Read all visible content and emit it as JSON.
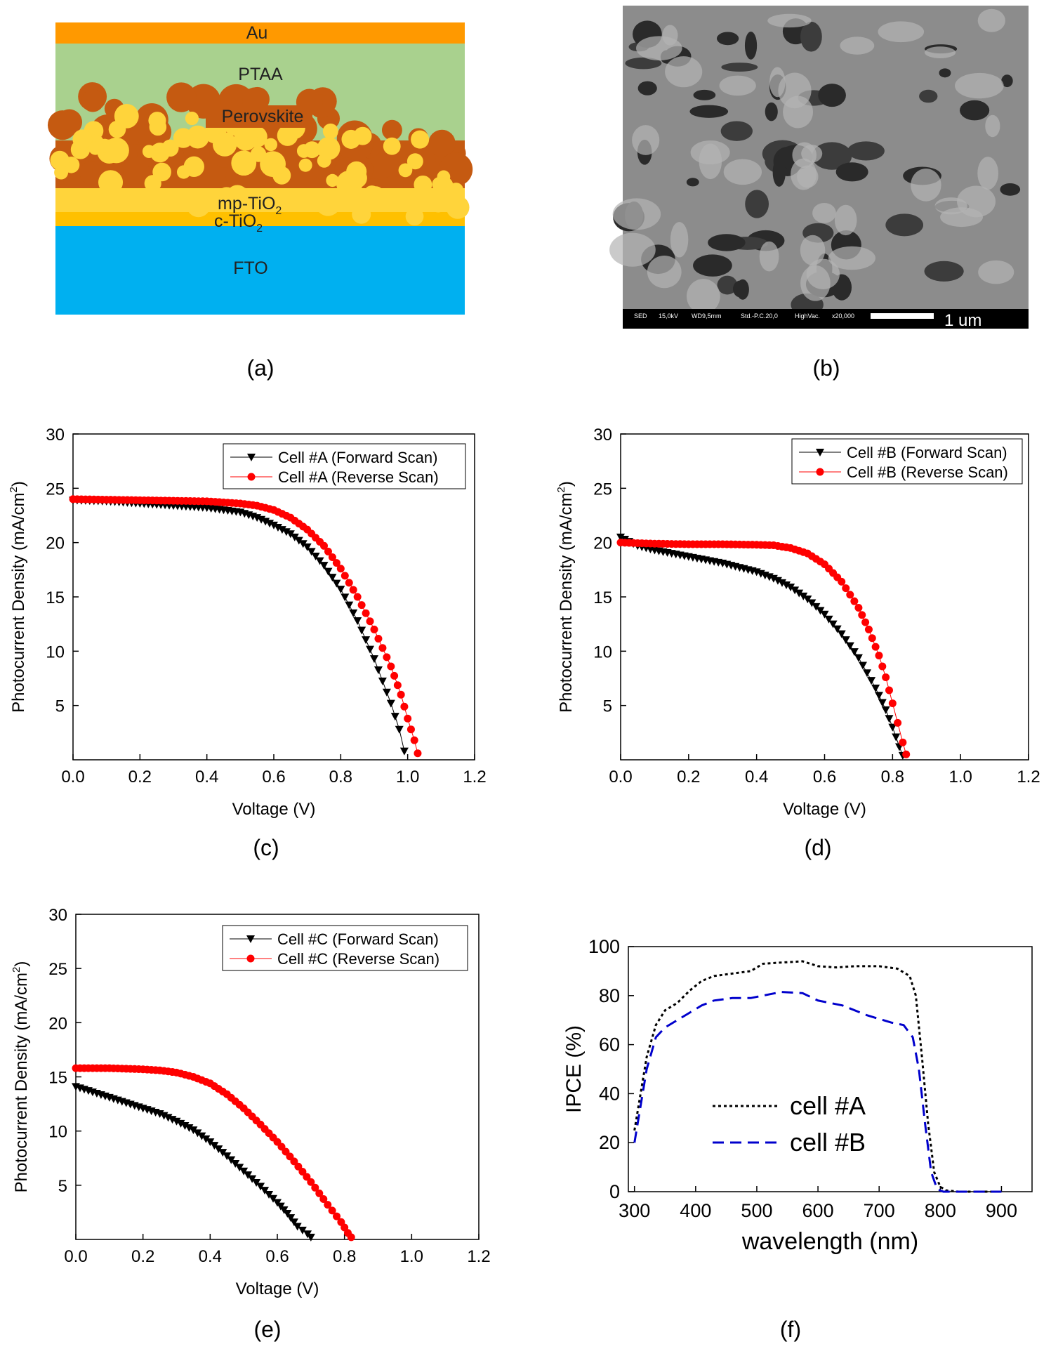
{
  "panel_labels": {
    "a": "(a)",
    "b": "(b)",
    "c": "(c)",
    "d": "(d)",
    "e": "(e)",
    "f": "(f)"
  },
  "schematic": {
    "layers": {
      "au": "Au",
      "ptaa": "PTAA",
      "perovskite": "Perovskite",
      "mp_tio2_base": "mp-TiO",
      "mp_tio2_sub": "2",
      "c_tio2_base": "c-TiO",
      "c_tio2_sub": "2",
      "fto": "FTO"
    },
    "colors": {
      "au": "#ff9900",
      "ptaa": "#a9d18e",
      "perovskite": "#c55a11",
      "mp_tio2": "#ffd43b",
      "c_tio2": "#ffc000",
      "fto": "#00b0f0"
    }
  },
  "sem": {
    "info_sed": "SED",
    "info_kv": "15,0kV",
    "info_wd": "WD9,5mm",
    "info_std": "Std.-P.C.20,0",
    "info_vac": "HighVac.",
    "info_mag": "x20,000",
    "scale_label": "1 um"
  },
  "chart_data": [
    {
      "id": "c",
      "type": "scatter",
      "xlabel": "Voltage (V)",
      "ylabel_base": "Photocurrent Density (mA/cm",
      "ylabel_sup": "2",
      "ylabel_end": ")",
      "xlim": [
        0,
        1.2
      ],
      "ylim": [
        0,
        30
      ],
      "xticks": [
        "0.0",
        "0.2",
        "0.4",
        "0.6",
        "0.8",
        "1.0",
        "1.2"
      ],
      "yticks": [
        "5",
        "10",
        "15",
        "20",
        "25",
        "30"
      ],
      "legend_position": "top-right",
      "series": [
        {
          "name": "Cell #A (Forward Scan)",
          "marker": "triangle-down",
          "color": "#000000",
          "points": [
            [
              0.0,
              23.9
            ],
            [
              0.1,
              23.8
            ],
            [
              0.2,
              23.6
            ],
            [
              0.3,
              23.4
            ],
            [
              0.4,
              23.2
            ],
            [
              0.5,
              22.8
            ],
            [
              0.55,
              22.3
            ],
            [
              0.6,
              21.6
            ],
            [
              0.65,
              20.8
            ],
            [
              0.7,
              19.6
            ],
            [
              0.75,
              17.9
            ],
            [
              0.8,
              15.7
            ],
            [
              0.85,
              12.8
            ],
            [
              0.9,
              9.3
            ],
            [
              0.95,
              5.2
            ],
            [
              0.975,
              2.8
            ],
            [
              0.99,
              0.8
            ]
          ]
        },
        {
          "name": "Cell #A (Reverse Scan)",
          "marker": "circle",
          "color": "#ff0000",
          "points": [
            [
              0.0,
              24.0
            ],
            [
              0.1,
              23.95
            ],
            [
              0.2,
              23.9
            ],
            [
              0.3,
              23.85
            ],
            [
              0.4,
              23.8
            ],
            [
              0.5,
              23.6
            ],
            [
              0.55,
              23.4
            ],
            [
              0.6,
              23.0
            ],
            [
              0.65,
              22.3
            ],
            [
              0.7,
              21.2
            ],
            [
              0.75,
              19.7
            ],
            [
              0.8,
              17.6
            ],
            [
              0.85,
              15.0
            ],
            [
              0.9,
              12.0
            ],
            [
              0.95,
              8.6
            ],
            [
              0.98,
              6.0
            ],
            [
              1.0,
              3.8
            ],
            [
              1.02,
              1.8
            ],
            [
              1.03,
              0.6
            ]
          ]
        }
      ]
    },
    {
      "id": "d",
      "type": "scatter",
      "xlabel": "Voltage (V)",
      "ylabel_base": "Photocurrent Density (mA/cm",
      "ylabel_sup": "2",
      "ylabel_end": ")",
      "xlim": [
        0,
        1.2
      ],
      "ylim": [
        0,
        30
      ],
      "xticks": [
        "0.0",
        "0.2",
        "0.4",
        "0.6",
        "0.8",
        "1.0",
        "1.2"
      ],
      "yticks": [
        "5",
        "10",
        "15",
        "20",
        "25",
        "30"
      ],
      "legend_position": "top-right",
      "series": [
        {
          "name": "Cell #B (Forward Scan)",
          "marker": "triangle-down",
          "color": "#000000",
          "points": [
            [
              0.0,
              20.5
            ],
            [
              0.05,
              19.7
            ],
            [
              0.1,
              19.3
            ],
            [
              0.2,
              18.7
            ],
            [
              0.3,
              18.1
            ],
            [
              0.4,
              17.3
            ],
            [
              0.45,
              16.7
            ],
            [
              0.5,
              15.9
            ],
            [
              0.55,
              14.8
            ],
            [
              0.6,
              13.4
            ],
            [
              0.65,
              11.6
            ],
            [
              0.7,
              9.4
            ],
            [
              0.75,
              6.6
            ],
            [
              0.78,
              4.6
            ],
            [
              0.8,
              3.0
            ],
            [
              0.82,
              1.2
            ],
            [
              0.83,
              0.4
            ]
          ]
        },
        {
          "name": "Cell #B (Reverse Scan)",
          "marker": "circle",
          "color": "#ff0000",
          "points": [
            [
              0.0,
              20.0
            ],
            [
              0.1,
              19.9
            ],
            [
              0.2,
              19.85
            ],
            [
              0.3,
              19.85
            ],
            [
              0.4,
              19.8
            ],
            [
              0.45,
              19.75
            ],
            [
              0.5,
              19.5
            ],
            [
              0.55,
              19.0
            ],
            [
              0.6,
              18.0
            ],
            [
              0.65,
              16.4
            ],
            [
              0.7,
              14.0
            ],
            [
              0.73,
              12.0
            ],
            [
              0.76,
              9.6
            ],
            [
              0.78,
              7.6
            ],
            [
              0.8,
              5.2
            ],
            [
              0.815,
              3.4
            ],
            [
              0.83,
              1.6
            ],
            [
              0.84,
              0.5
            ]
          ]
        }
      ]
    },
    {
      "id": "e",
      "type": "scatter",
      "xlabel": "Voltage (V)",
      "ylabel_base": "Photocurrent Density (mA/cm",
      "ylabel_sup": "2",
      "ylabel_end": ")",
      "xlim": [
        0,
        1.2
      ],
      "ylim": [
        0,
        30
      ],
      "xticks": [
        "0.0",
        "0.2",
        "0.4",
        "0.6",
        "0.8",
        "1.0",
        "1.2"
      ],
      "yticks": [
        "5",
        "10",
        "15",
        "20",
        "25",
        "30"
      ],
      "legend_position": "top-right",
      "series": [
        {
          "name": "Cell #C (Forward Scan)",
          "marker": "triangle-down",
          "color": "#000000",
          "points": [
            [
              0.0,
              14.1
            ],
            [
              0.05,
              13.6
            ],
            [
              0.1,
              13.1
            ],
            [
              0.15,
              12.6
            ],
            [
              0.2,
              12.1
            ],
            [
              0.25,
              11.6
            ],
            [
              0.3,
              10.9
            ],
            [
              0.35,
              10.1
            ],
            [
              0.4,
              9.0
            ],
            [
              0.45,
              7.7
            ],
            [
              0.5,
              6.3
            ],
            [
              0.55,
              4.9
            ],
            [
              0.6,
              3.4
            ],
            [
              0.63,
              2.4
            ],
            [
              0.66,
              1.2
            ],
            [
              0.69,
              0.5
            ],
            [
              0.7,
              0.2
            ]
          ]
        },
        {
          "name": "Cell #C (Reverse Scan)",
          "marker": "circle",
          "color": "#ff0000",
          "points": [
            [
              0.0,
              15.8
            ],
            [
              0.1,
              15.8
            ],
            [
              0.2,
              15.7
            ],
            [
              0.25,
              15.6
            ],
            [
              0.3,
              15.4
            ],
            [
              0.35,
              15.0
            ],
            [
              0.4,
              14.4
            ],
            [
              0.45,
              13.4
            ],
            [
              0.5,
              12.1
            ],
            [
              0.55,
              10.6
            ],
            [
              0.6,
              9.0
            ],
            [
              0.65,
              7.2
            ],
            [
              0.7,
              5.3
            ],
            [
              0.75,
              3.2
            ],
            [
              0.79,
              1.6
            ],
            [
              0.81,
              0.6
            ],
            [
              0.82,
              0.2
            ]
          ]
        }
      ]
    },
    {
      "id": "f",
      "type": "line",
      "xlabel": "wavelength (nm)",
      "ylabel": "IPCE (%)",
      "xlim": [
        290,
        950
      ],
      "ylim": [
        0,
        100
      ],
      "xticks": [
        "300",
        "400",
        "500",
        "600",
        "700",
        "800",
        "900"
      ],
      "yticks": [
        "0",
        "20",
        "40",
        "60",
        "80",
        "100"
      ],
      "legend_position": "center",
      "series": [
        {
          "name": "cell #A",
          "style": "dotted",
          "color": "#000000",
          "points": [
            [
              300,
              25
            ],
            [
              310,
              40
            ],
            [
              320,
              55
            ],
            [
              335,
              68
            ],
            [
              350,
              74
            ],
            [
              370,
              77
            ],
            [
              390,
              82
            ],
            [
              410,
              86
            ],
            [
              430,
              88
            ],
            [
              460,
              89
            ],
            [
              490,
              90
            ],
            [
              510,
              93
            ],
            [
              540,
              93.5
            ],
            [
              575,
              94
            ],
            [
              600,
              92
            ],
            [
              630,
              91.5
            ],
            [
              660,
              92
            ],
            [
              700,
              92
            ],
            [
              730,
              91
            ],
            [
              750,
              88
            ],
            [
              760,
              80
            ],
            [
              770,
              55
            ],
            [
              780,
              28
            ],
            [
              790,
              8
            ],
            [
              800,
              2
            ],
            [
              810,
              0.5
            ],
            [
              830,
              0
            ],
            [
              880,
              0
            ],
            [
              900,
              0
            ]
          ]
        },
        {
          "name": "cell #B",
          "style": "dashed",
          "color": "#0000cc",
          "points": [
            [
              300,
              20
            ],
            [
              310,
              35
            ],
            [
              320,
              50
            ],
            [
              335,
              63
            ],
            [
              350,
              67
            ],
            [
              370,
              70
            ],
            [
              390,
              73
            ],
            [
              410,
              76
            ],
            [
              430,
              78
            ],
            [
              460,
              79
            ],
            [
              490,
              79
            ],
            [
              510,
              80
            ],
            [
              540,
              81.5
            ],
            [
              575,
              81
            ],
            [
              600,
              78
            ],
            [
              640,
              76
            ],
            [
              680,
              72
            ],
            [
              720,
              69
            ],
            [
              740,
              68
            ],
            [
              755,
              63
            ],
            [
              765,
              50
            ],
            [
              775,
              28
            ],
            [
              785,
              8
            ],
            [
              795,
              1
            ],
            [
              805,
              0
            ],
            [
              830,
              0
            ],
            [
              880,
              0
            ],
            [
              900,
              0
            ]
          ]
        }
      ]
    }
  ]
}
